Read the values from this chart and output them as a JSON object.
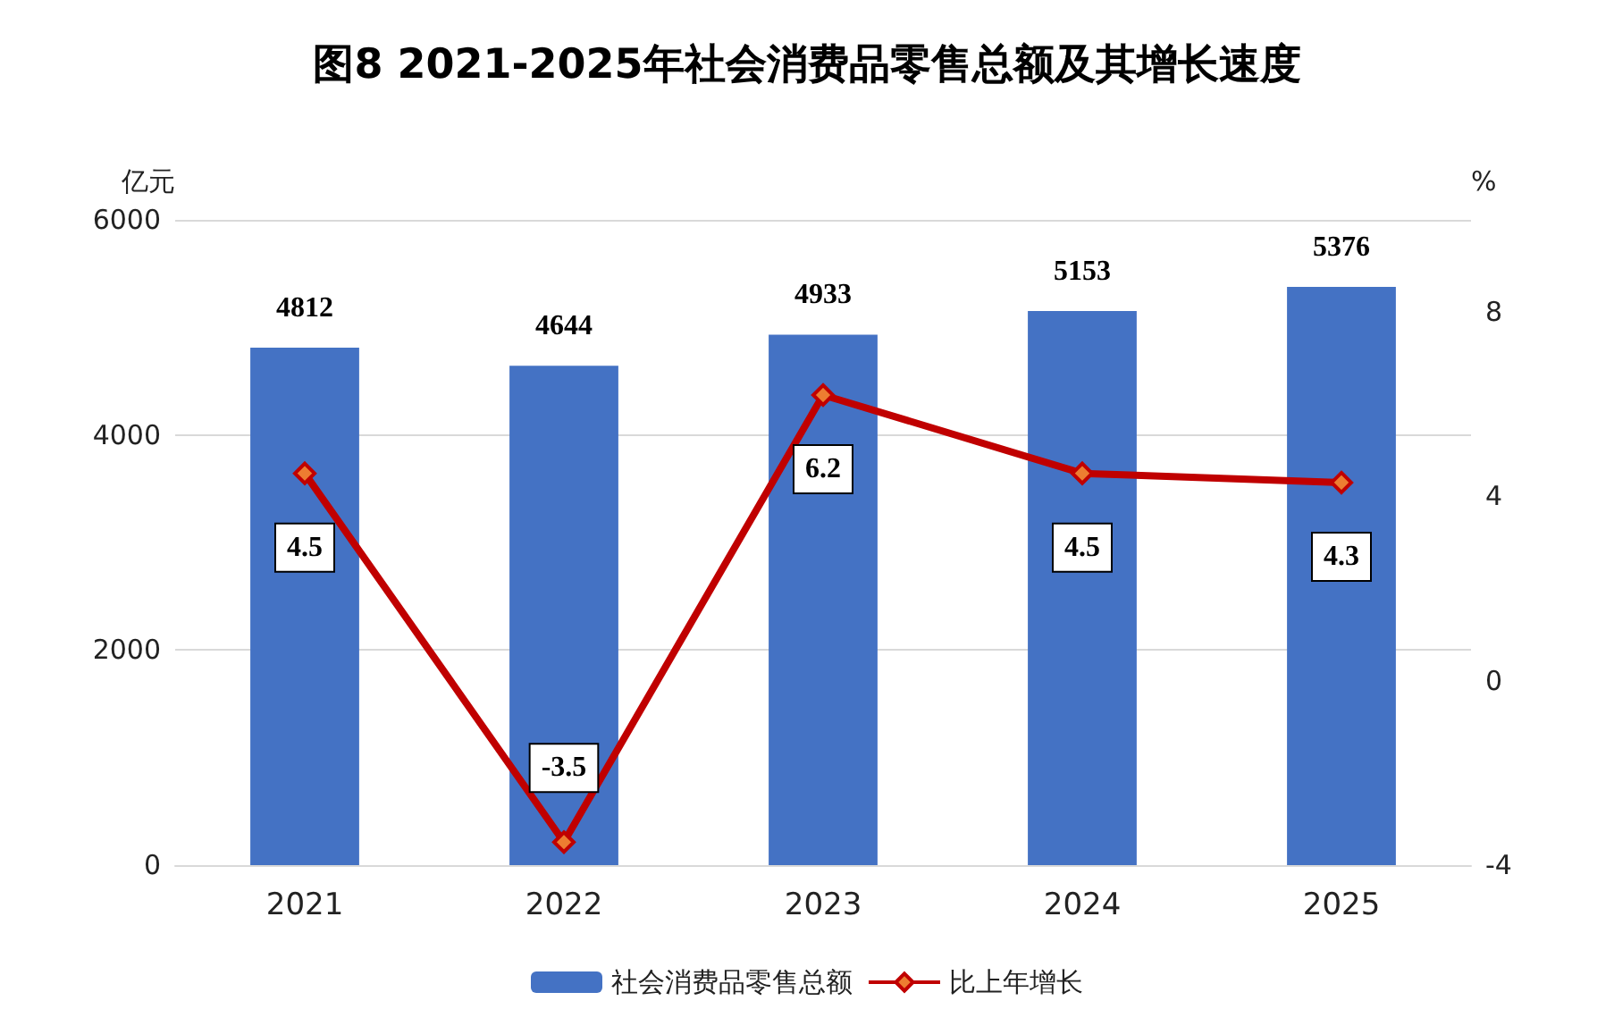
{
  "chart_data": {
    "type": "bar",
    "title": "图8 2021-2025年社会消费品零售总额及其增长速度",
    "ylabel": "亿元",
    "y2label": "%",
    "categories": [
      "2021",
      "2022",
      "2023",
      "2024",
      "2025"
    ],
    "series": [
      {
        "name": "社会消费品零售总额",
        "color": "#4472c4",
        "values": [
          4812,
          4644,
          4933,
          5153,
          5376
        ]
      },
      {
        "name": "比上年增长",
        "type": "line",
        "axis": "y2",
        "color": "#c00000",
        "values": [
          4.5,
          -3.5,
          6.2,
          4.5,
          4.3
        ]
      }
    ],
    "ylim": [
      0,
      6000
    ],
    "yticks": [
      0,
      2000,
      4000,
      6000
    ],
    "y2lim": [
      -4,
      10
    ],
    "y2ticks": [
      -4,
      0,
      4,
      8
    ],
    "grid": "y",
    "legend": "bottom",
    "marker": "diamond",
    "data_labels": true
  }
}
